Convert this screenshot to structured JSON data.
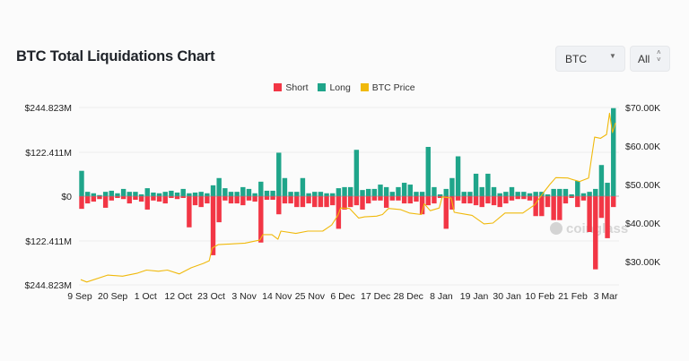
{
  "header": {
    "title": "BTC Total Liquidations Chart"
  },
  "controls": {
    "coin_select": "BTC",
    "range_select": "All"
  },
  "watermark": "coinglass",
  "colors": {
    "short": "#f23645",
    "long": "#1fa58a",
    "price": "#f0b90b"
  },
  "chart_data": {
    "type": "bar",
    "title": "BTC Total Liquidations Chart",
    "legend": {
      "placement": "top-center",
      "entries": [
        "Short",
        "Long",
        "BTC Price"
      ]
    },
    "grid": true,
    "x_ticks": [
      "9 Sep",
      "20 Sep",
      "1 Oct",
      "12 Oct",
      "23 Oct",
      "3 Nov",
      "14 Nov",
      "25 Nov",
      "6 Dec",
      "17 Dec",
      "28 Dec",
      "8 Jan",
      "19 Jan",
      "30 Jan",
      "10 Feb",
      "21 Feb",
      "3 Mar"
    ],
    "y_left": {
      "ticks": [
        "$244.823M",
        "$122.411M",
        "$0",
        "$122.411M",
        "$244.823M"
      ],
      "range_musd": [
        -244.823,
        244.823
      ]
    },
    "y_right": {
      "ticks": [
        "$70.00K",
        "$60.00K",
        "$50.00K",
        "$40.00K",
        "$30.00K"
      ],
      "range_kusd": [
        25,
        70
      ]
    },
    "bars_musd": [
      [
        "9 Sep",
        70,
        35
      ],
      [
        "11 Sep",
        12,
        20
      ],
      [
        "13 Sep",
        8,
        15
      ],
      [
        "15 Sep",
        3,
        8
      ],
      [
        "17 Sep",
        12,
        32
      ],
      [
        "19 Sep",
        15,
        12
      ],
      [
        "21 Sep",
        8,
        5
      ],
      [
        "23 Sep",
        20,
        8
      ],
      [
        "25 Sep",
        12,
        20
      ],
      [
        "27 Sep",
        12,
        10
      ],
      [
        "29 Sep",
        5,
        15
      ],
      [
        "1 Oct",
        22,
        37
      ],
      [
        "3 Oct",
        10,
        12
      ],
      [
        "5 Oct",
        8,
        15
      ],
      [
        "7 Oct",
        12,
        20
      ],
      [
        "9 Oct",
        15,
        5
      ],
      [
        "11 Oct",
        10,
        8
      ],
      [
        "13 Oct",
        20,
        5
      ],
      [
        "15 Oct",
        8,
        86
      ],
      [
        "17 Oct",
        10,
        25
      ],
      [
        "19 Oct",
        12,
        30
      ],
      [
        "21 Oct",
        8,
        20
      ],
      [
        "23 Oct",
        30,
        163
      ],
      [
        "25 Oct",
        50,
        72
      ],
      [
        "27 Oct",
        22,
        12
      ],
      [
        "29 Oct",
        12,
        20
      ],
      [
        "31 Oct",
        12,
        20
      ],
      [
        "2 Nov",
        25,
        25
      ],
      [
        "4 Nov",
        20,
        12
      ],
      [
        "6 Nov",
        8,
        15
      ],
      [
        "8 Nov",
        40,
        128
      ],
      [
        "10 Nov",
        15,
        10
      ],
      [
        "12 Nov",
        15,
        10
      ],
      [
        "14 Nov",
        120,
        50
      ],
      [
        "16 Nov",
        50,
        20
      ],
      [
        "18 Nov",
        12,
        20
      ],
      [
        "20 Nov",
        12,
        30
      ],
      [
        "22 Nov",
        50,
        30
      ],
      [
        "24 Nov",
        8,
        20
      ],
      [
        "26 Nov",
        12,
        30
      ],
      [
        "28 Nov",
        12,
        30
      ],
      [
        "30 Nov",
        8,
        30
      ],
      [
        "2 Dec",
        8,
        25
      ],
      [
        "4 Dec",
        22,
        90
      ],
      [
        "6 Dec",
        25,
        37
      ],
      [
        "8 Dec",
        25,
        30
      ],
      [
        "10 Dec",
        128,
        25
      ],
      [
        "12 Dec",
        17,
        37
      ],
      [
        "14 Dec",
        20,
        20
      ],
      [
        "16 Dec",
        20,
        12
      ],
      [
        "18 Dec",
        32,
        12
      ],
      [
        "20 Dec",
        25,
        32
      ],
      [
        "22 Dec",
        12,
        12
      ],
      [
        "24 Dec",
        25,
        12
      ],
      [
        "26 Dec",
        37,
        20
      ],
      [
        "28 Dec",
        32,
        20
      ],
      [
        "30 Dec",
        12,
        15
      ],
      [
        "1 Jan",
        12,
        50
      ],
      [
        "3 Jan",
        136,
        25
      ],
      [
        "5 Jan",
        25,
        20
      ],
      [
        "7 Jan",
        5,
        5
      ],
      [
        "9 Jan",
        20,
        90
      ],
      [
        "11 Jan",
        50,
        37
      ],
      [
        "13 Jan",
        110,
        12
      ],
      [
        "15 Jan",
        12,
        20
      ],
      [
        "17 Jan",
        12,
        20
      ],
      [
        "19 Jan",
        62,
        25
      ],
      [
        "21 Jan",
        25,
        30
      ],
      [
        "23 Jan",
        62,
        20
      ],
      [
        "25 Jan",
        25,
        25
      ],
      [
        "27 Jan",
        8,
        30
      ],
      [
        "29 Jan",
        12,
        20
      ],
      [
        "31 Jan",
        25,
        12
      ],
      [
        "2 Feb",
        12,
        8
      ],
      [
        "4 Feb",
        12,
        8
      ],
      [
        "6 Feb",
        8,
        12
      ],
      [
        "8 Feb",
        12,
        55
      ],
      [
        "10 Feb",
        12,
        55
      ],
      [
        "12 Feb",
        5,
        30
      ],
      [
        "14 Feb",
        20,
        66
      ],
      [
        "16 Feb",
        20,
        66
      ],
      [
        "18 Feb",
        20,
        20
      ],
      [
        "20 Feb",
        5,
        5
      ],
      [
        "22 Feb",
        42,
        30
      ],
      [
        "24 Feb",
        8,
        12
      ],
      [
        "26 Feb",
        12,
        99
      ],
      [
        "28 Feb",
        20,
        202
      ],
      [
        "1 Mar",
        86,
        60
      ],
      [
        "3 Mar",
        37,
        116
      ],
      [
        "5 Mar",
        243,
        30
      ]
    ],
    "bars_columns": [
      "date",
      "long",
      "short"
    ],
    "price_kusd": [
      [
        "9 Sep",
        25.3
      ],
      [
        "11 Sep",
        24.7
      ],
      [
        "18 Sep",
        26.5
      ],
      [
        "23 Sep",
        26.2
      ],
      [
        "28 Sep",
        27.0
      ],
      [
        "1 Oct",
        27.8
      ],
      [
        "5 Oct",
        27.5
      ],
      [
        "8 Oct",
        27.8
      ],
      [
        "12 Oct",
        26.8
      ],
      [
        "16 Oct",
        28.4
      ],
      [
        "20 Oct",
        29.5
      ],
      [
        "22 Oct",
        30.2
      ],
      [
        "23 Oct",
        33.5
      ],
      [
        "25 Oct",
        34.4
      ],
      [
        "30 Oct",
        34.6
      ],
      [
        "3 Nov",
        34.8
      ],
      [
        "8 Nov",
        35.6
      ],
      [
        "9 Nov",
        37.0
      ],
      [
        "12 Nov",
        37.0
      ],
      [
        "14 Nov",
        35.8
      ],
      [
        "15 Nov",
        37.9
      ],
      [
        "20 Nov",
        37.3
      ],
      [
        "24 Nov",
        37.9
      ],
      [
        "29 Nov",
        37.9
      ],
      [
        "2 Dec",
        39.5
      ],
      [
        "4 Dec",
        41.9
      ],
      [
        "5 Dec",
        43.9
      ],
      [
        "8 Dec",
        43.8
      ],
      [
        "11 Dec",
        41.3
      ],
      [
        "13 Dec",
        41.6
      ],
      [
        "17 Dec",
        41.8
      ],
      [
        "19 Dec",
        42.2
      ],
      [
        "21 Dec",
        43.8
      ],
      [
        "25 Dec",
        43.5
      ],
      [
        "28 Dec",
        42.6
      ],
      [
        "1 Jan",
        42.2
      ],
      [
        "2 Jan",
        45.0
      ],
      [
        "4 Jan",
        43.2
      ],
      [
        "7 Jan",
        43.9
      ],
      [
        "8 Jan",
        46.8
      ],
      [
        "11 Jan",
        46.5
      ],
      [
        "12 Jan",
        42.8
      ],
      [
        "18 Jan",
        42.0
      ],
      [
        "22 Jan",
        39.8
      ],
      [
        "25 Jan",
        40.0
      ],
      [
        "29 Jan",
        42.6
      ],
      [
        "4 Feb",
        42.6
      ],
      [
        "8 Feb",
        44.8
      ],
      [
        "11 Feb",
        48.0
      ],
      [
        "13 Feb",
        50.0
      ],
      [
        "15 Feb",
        51.8
      ],
      [
        "19 Feb",
        51.7
      ],
      [
        "21 Feb",
        51.2
      ],
      [
        "23 Feb",
        50.8
      ],
      [
        "26 Feb",
        51.7
      ],
      [
        "27 Feb",
        57.0
      ],
      [
        "28 Feb",
        62.3
      ],
      [
        "1 Mar",
        62.0
      ],
      [
        "3 Mar",
        63.0
      ],
      [
        "4 Mar",
        68.5
      ],
      [
        "5 Mar",
        63.5
      ],
      [
        "6 Mar",
        66.0
      ]
    ]
  }
}
